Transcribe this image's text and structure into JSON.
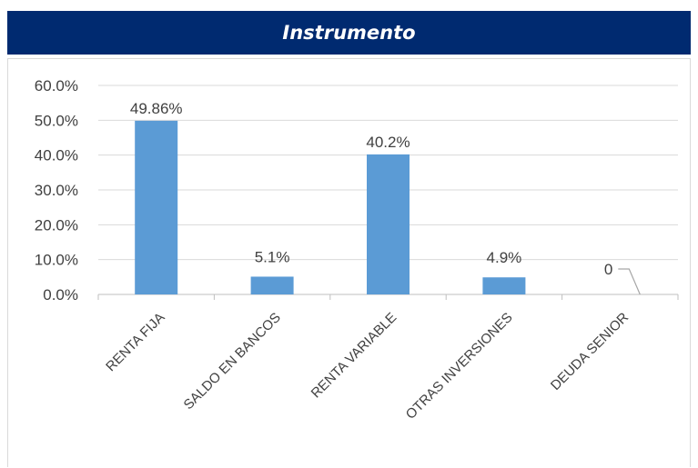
{
  "title": "Instrumento",
  "chart_data": {
    "type": "bar",
    "title": "Instrumento",
    "categories": [
      "RENTA FIJA",
      "SALDO EN BANCOS",
      "RENTA VARIABLE",
      "OTRAS INVERSIONES",
      "DEUDA SENIOR"
    ],
    "values": [
      49.86,
      5.1,
      40.2,
      4.9,
      0
    ],
    "data_labels": [
      "49.86%",
      "5.1%",
      "40.2%",
      "4.9%",
      "0"
    ],
    "ytick_labels": [
      "0.0%",
      "10.0%",
      "20.0%",
      "30.0%",
      "40.0%",
      "50.0%",
      "60.0%"
    ],
    "ylim": [
      0,
      60
    ],
    "ystep": 10,
    "grid": true,
    "legend": "none",
    "bar_color": "#5b9bd5",
    "xlabel": "",
    "ylabel": ""
  }
}
